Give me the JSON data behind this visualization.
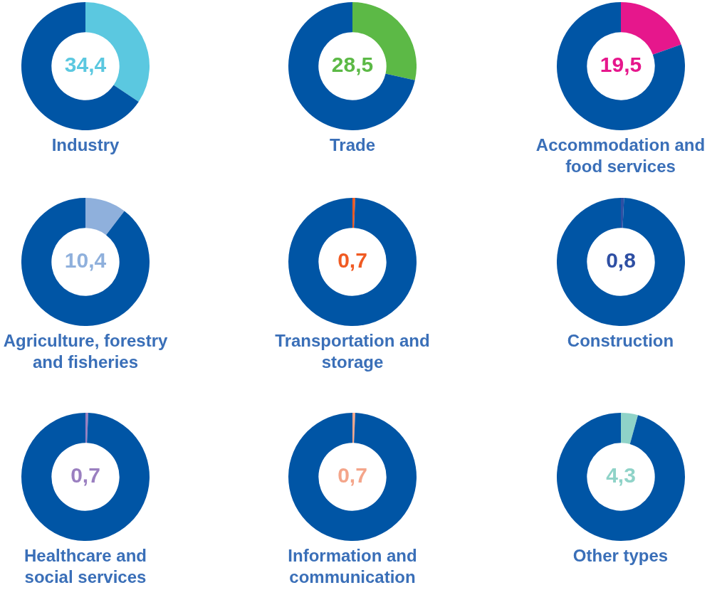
{
  "chart_data": [
    {
      "type": "donut",
      "title": "Industry",
      "categories": [
        null,
        null
      ],
      "values": [
        34.4,
        65.6
      ],
      "colors": [
        "#5bc8e0",
        "#0055a5"
      ],
      "value_labels": [
        "34,4",
        null
      ]
    },
    {
      "type": "donut",
      "title": "Trade",
      "categories": [
        null,
        null
      ],
      "values": [
        28.5,
        71.5
      ],
      "colors": [
        "#5cb946",
        "#0055a5"
      ],
      "value_labels": [
        "28,5",
        null
      ]
    },
    {
      "type": "donut",
      "title": "Accommodation and food services",
      "categories": [
        null,
        null
      ],
      "values": [
        19.5,
        80.5
      ],
      "colors": [
        "#e6178c",
        "#0055a5"
      ],
      "value_labels": [
        "19,5",
        null
      ]
    },
    {
      "type": "donut",
      "title": "Agriculture, forestry and fisheries",
      "categories": [
        null,
        null
      ],
      "values": [
        10.4,
        89.6
      ],
      "colors": [
        "#8fb0dc",
        "#0055a5"
      ],
      "value_labels": [
        "10,4",
        null
      ]
    },
    {
      "type": "donut",
      "title": "Transportation and storage",
      "categories": [
        null,
        null
      ],
      "values": [
        0.7,
        99.3
      ],
      "colors": [
        "#f05a22",
        "#0055a5"
      ],
      "value_labels": [
        "0,7",
        null
      ]
    },
    {
      "type": "donut",
      "title": "Construction",
      "categories": [
        null,
        null
      ],
      "values": [
        0.8,
        99.2
      ],
      "colors": [
        "#2e4fa3",
        "#0055a5"
      ],
      "value_labels": [
        "0,8",
        null
      ]
    },
    {
      "type": "donut",
      "title": "Healthcare and social services",
      "categories": [
        null,
        null
      ],
      "values": [
        0.7,
        99.3
      ],
      "colors": [
        "#9a7fc0",
        "#0055a5"
      ],
      "value_labels": [
        "0,7",
        null
      ]
    },
    {
      "type": "donut",
      "title": "Information and communication",
      "categories": [
        null,
        null
      ],
      "values": [
        0.7,
        99.3
      ],
      "colors": [
        "#f4a58a",
        "#0055a5"
      ],
      "value_labels": [
        "0,7",
        null
      ]
    },
    {
      "type": "donut",
      "title": "Other types",
      "categories": [
        null,
        null
      ],
      "values": [
        4.3,
        95.7
      ],
      "colors": [
        "#8fd3c8",
        "#0055a5"
      ],
      "value_labels": [
        "4,3",
        null
      ]
    }
  ]
}
